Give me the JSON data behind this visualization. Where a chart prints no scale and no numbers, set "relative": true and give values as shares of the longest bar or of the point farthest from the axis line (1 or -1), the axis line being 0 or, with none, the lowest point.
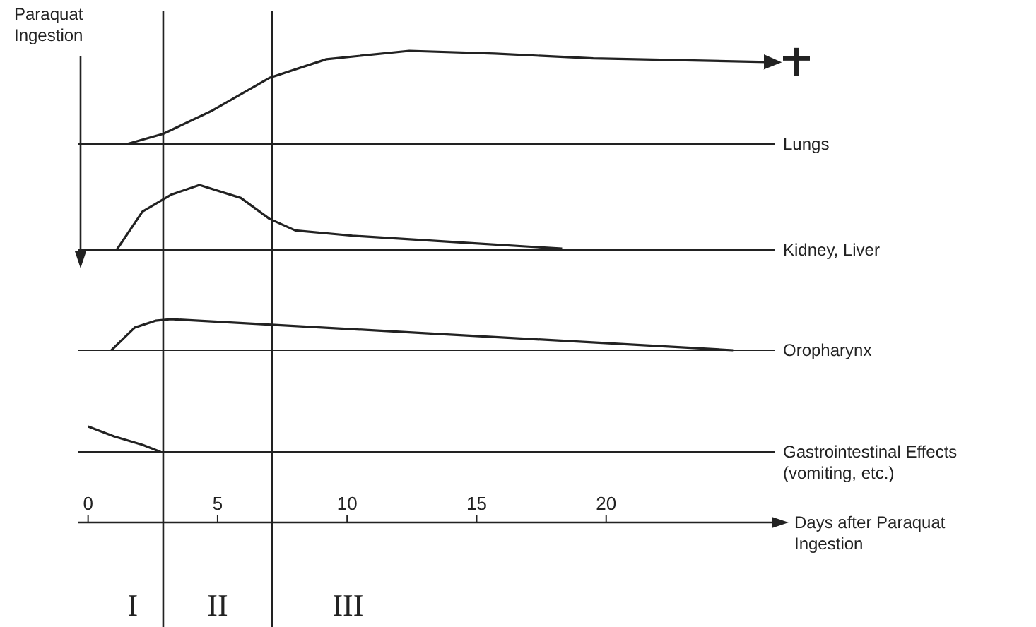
{
  "chart_data": [
    {
      "type": "line",
      "relative": true,
      "tick_labels": false,
      "marker": "none",
      "line_style": "solid",
      "xlim": [
        -0.4,
        26.5
      ],
      "annotations": [
        "Paraquat Ingestion"
      ],
      "ref_lines": [
        {
          "axis": "x",
          "value": 2.9
        },
        {
          "axis": "x",
          "value": 7.1
        }
      ],
      "series": [
        {
          "name": "Lungs",
          "color": "#222222",
          "x": [
            1.5,
            2.9,
            4.8,
            7,
            9.2,
            12.4,
            15.7,
            19.5,
            26.2
          ],
          "values": [
            0,
            0.11,
            0.36,
            0.71,
            0.91,
            1,
            0.97,
            0.92,
            0.88
          ]
        }
      ]
    },
    {
      "type": "line",
      "relative": true,
      "tick_labels": false,
      "marker": "none",
      "line_style": "solid",
      "xlim": [
        -0.4,
        26.5
      ],
      "ref_lines": [
        {
          "axis": "x",
          "value": 2.9
        },
        {
          "axis": "x",
          "value": 7.1
        }
      ],
      "series": [
        {
          "name": "Kidney, Liver",
          "color": "#222222",
          "x": [
            1.1,
            2.1,
            3.2,
            4.3,
            5.9,
            7,
            8,
            10.2,
            14.6,
            18.3
          ],
          "values": [
            0,
            0.59,
            0.85,
            1,
            0.8,
            0.48,
            0.3,
            0.22,
            0.11,
            0.02
          ]
        }
      ]
    },
    {
      "type": "line",
      "relative": true,
      "tick_labels": false,
      "marker": "none",
      "line_style": "solid",
      "xlim": [
        -0.4,
        26.5
      ],
      "ref_lines": [
        {
          "axis": "x",
          "value": 2.9
        },
        {
          "axis": "x",
          "value": 7.1
        }
      ],
      "series": [
        {
          "name": "Oropharynx",
          "color": "#222222",
          "x": [
            0.9,
            1.8,
            2.6,
            3.2,
            13,
            24.9
          ],
          "values": [
            0,
            0.73,
            0.95,
            1,
            0.55,
            0
          ]
        }
      ]
    },
    {
      "type": "line",
      "relative": true,
      "tick_labels": "x",
      "marker": "none",
      "line_style": "solid",
      "xlim": [
        -0.4,
        26.5
      ],
      "xticks": [
        0,
        5,
        10,
        15,
        20
      ],
      "xlabel": "Days after Paraquat Ingestion",
      "ref_lines": [
        {
          "axis": "x",
          "value": 2.9
        },
        {
          "axis": "x",
          "value": 7.1
        }
      ],
      "annotations": [
        "I",
        "II",
        "III"
      ],
      "series": [
        {
          "name": "Gastrointestinal Effects (vomiting, etc.)",
          "color": "#222222",
          "x": [
            0,
            1,
            2.1,
            2.8
          ],
          "values": [
            1,
            0.61,
            0.28,
            0
          ]
        }
      ]
    }
  ]
}
